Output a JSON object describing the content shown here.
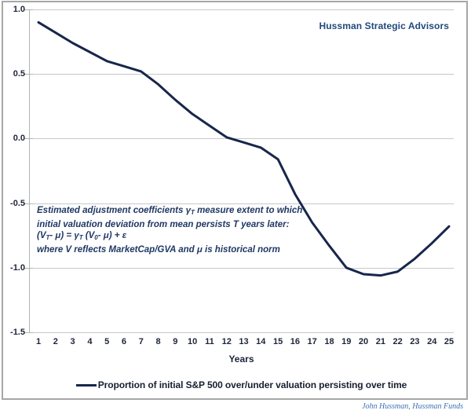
{
  "header": {
    "brand": "Hussman Strategic Advisors"
  },
  "footer": {
    "credit": "John Hussman, Hussman Funds"
  },
  "legend": {
    "label": "Proportion of initial S&P 500 over/under valuation persisting over time"
  },
  "annotation": {
    "lines": [
      [
        {
          "t": "Estimated adjustment coefficients "
        },
        {
          "t": "γ"
        },
        {
          "t": "T",
          "sub": true
        },
        {
          "t": " measure extent to which"
        }
      ],
      [
        {
          "t": "initial valuation deviation from mean persists T years later:"
        }
      ],
      [
        {
          "t": "(V"
        },
        {
          "t": "T",
          "sub": true
        },
        {
          "t": "- μ) = γ"
        },
        {
          "t": "T",
          "sub": true
        },
        {
          "t": " (V"
        },
        {
          "t": "0",
          "sub": true
        },
        {
          "t": "- μ) + ε"
        }
      ],
      [
        {
          "t": "where V reflects MarketCap/GVA and μ is historical norm"
        }
      ]
    ]
  },
  "colors": {
    "line": "#18264a",
    "gridline": "#c8c8c8",
    "axis": "#b3b3b3",
    "brand_text": "#1F497D",
    "annotation_text": "#203864",
    "credit_text": "#3f6fb5"
  },
  "chart_data": {
    "type": "line",
    "title": "",
    "xlabel": "Years",
    "ylabel": "",
    "x": [
      1,
      2,
      3,
      4,
      5,
      6,
      7,
      8,
      9,
      10,
      11,
      12,
      13,
      14,
      15,
      16,
      17,
      18,
      19,
      20,
      21,
      22,
      23,
      24,
      25
    ],
    "series": [
      {
        "name": "Proportion of initial S&P 500 over/under valuation persisting over time",
        "values": [
          0.9,
          0.82,
          0.74,
          0.67,
          0.6,
          0.56,
          0.52,
          0.42,
          0.3,
          0.19,
          0.1,
          0.01,
          -0.03,
          -0.07,
          -0.16,
          -0.43,
          -0.65,
          -0.83,
          -1.0,
          -1.05,
          -1.06,
          -1.03,
          -0.93,
          -0.81,
          -0.68
        ]
      }
    ],
    "ylim": [
      -1.5,
      1.0
    ],
    "yticks": [
      1.0,
      0.5,
      0.0,
      -0.5,
      -1.0,
      -1.5
    ],
    "xlim": [
      1,
      25
    ],
    "grid": "horizontal",
    "legend_position": "bottom"
  }
}
